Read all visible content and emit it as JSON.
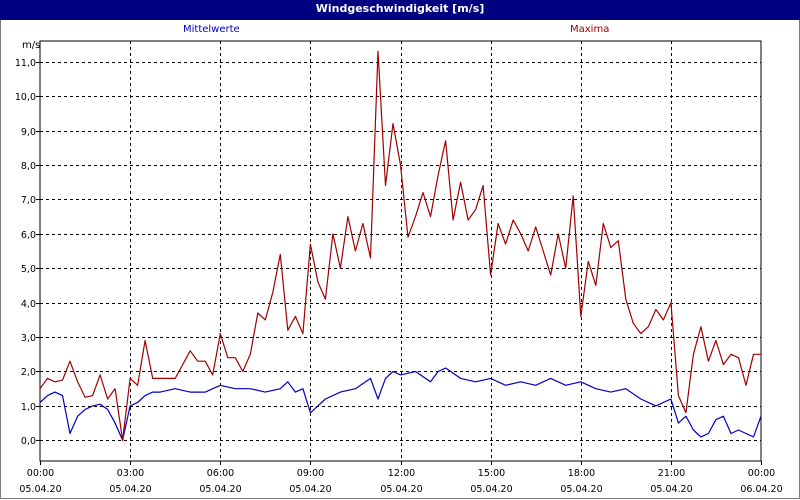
{
  "window": {
    "title": "Windgeschwindigkeit [m/s]"
  },
  "chart_data": {
    "type": "line",
    "title": "Windgeschwindigkeit [m/s]",
    "ylabel": "m/s",
    "xlabel": "",
    "ylim": [
      -0.6,
      11.6
    ],
    "yticks": [
      "0,0",
      "1,0",
      "2,0",
      "3,0",
      "4,0",
      "5,0",
      "6,0",
      "7,0",
      "8,0",
      "9,0",
      "10,0",
      "11,0"
    ],
    "xticks": [
      {
        "time": "00:00",
        "date": "05.04.20"
      },
      {
        "time": "03:00",
        "date": "05.04.20"
      },
      {
        "time": "06:00",
        "date": "05.04.20"
      },
      {
        "time": "09:00",
        "date": "05.04.20"
      },
      {
        "time": "12:00",
        "date": "05.04.20"
      },
      {
        "time": "15:00",
        "date": "05.04.20"
      },
      {
        "time": "18:00",
        "date": "05.04.20"
      },
      {
        "time": "21:00",
        "date": "05.04.20"
      },
      {
        "time": "00:00",
        "date": "06.04.20"
      }
    ],
    "x_unit_hours": true,
    "xlim": [
      0,
      24
    ],
    "grid": true,
    "series": [
      {
        "name": "Mittelwerte",
        "color": "#0000c0",
        "x": [
          0,
          0.25,
          0.5,
          0.75,
          1,
          1.25,
          1.5,
          1.75,
          2,
          2.25,
          2.5,
          2.75,
          3,
          3.25,
          3.5,
          3.75,
          4,
          4.5,
          5,
          5.5,
          6,
          6.5,
          7,
          7.5,
          8,
          8.25,
          8.5,
          8.75,
          9,
          9.5,
          10,
          10.5,
          11,
          11.25,
          11.5,
          11.75,
          12,
          12.5,
          13,
          13.25,
          13.5,
          14,
          14.5,
          15,
          15.5,
          16,
          16.5,
          17,
          17.5,
          18,
          18.5,
          19,
          19.5,
          20,
          20.5,
          21,
          21.25,
          21.5,
          21.75,
          22,
          22.25,
          22.5,
          22.75,
          23,
          23.25,
          23.5,
          23.75,
          24
        ],
        "y": [
          1.1,
          1.3,
          1.4,
          1.3,
          0.2,
          0.7,
          0.9,
          1.0,
          1.05,
          0.9,
          0.5,
          0.0,
          1.0,
          1.1,
          1.3,
          1.4,
          1.4,
          1.5,
          1.4,
          1.4,
          1.6,
          1.5,
          1.5,
          1.4,
          1.5,
          1.7,
          1.4,
          1.5,
          0.8,
          1.2,
          1.4,
          1.5,
          1.8,
          1.2,
          1.8,
          2.0,
          1.9,
          2.0,
          1.7,
          2.0,
          2.1,
          1.8,
          1.7,
          1.8,
          1.6,
          1.7,
          1.6,
          1.8,
          1.6,
          1.7,
          1.5,
          1.4,
          1.5,
          1.2,
          1.0,
          1.2,
          0.5,
          0.7,
          0.3,
          0.1,
          0.2,
          0.6,
          0.7,
          0.2,
          0.3,
          0.2,
          0.1,
          0.7
        ]
      },
      {
        "name": "Maxima",
        "color": "#a00000",
        "x": [
          0,
          0.25,
          0.5,
          0.75,
          1,
          1.25,
          1.5,
          1.75,
          2,
          2.25,
          2.5,
          2.75,
          3,
          3.25,
          3.5,
          3.75,
          4,
          4.5,
          5,
          5.25,
          5.5,
          5.75,
          6,
          6.25,
          6.5,
          6.75,
          7,
          7.25,
          7.5,
          7.75,
          8,
          8.25,
          8.5,
          8.75,
          9,
          9.25,
          9.5,
          9.75,
          10,
          10.25,
          10.5,
          10.75,
          11,
          11.25,
          11.5,
          11.75,
          12,
          12.25,
          12.5,
          12.75,
          13,
          13.25,
          13.5,
          13.75,
          14,
          14.25,
          14.5,
          14.75,
          15,
          15.25,
          15.5,
          15.75,
          16,
          16.25,
          16.5,
          16.75,
          17,
          17.25,
          17.5,
          17.75,
          18,
          18.25,
          18.5,
          18.75,
          19,
          19.25,
          19.5,
          19.75,
          20,
          20.25,
          20.5,
          20.75,
          21,
          21.25,
          21.5,
          21.75,
          22,
          22.25,
          22.5,
          22.75,
          23,
          23.25,
          23.5,
          23.75,
          24
        ],
        "y": [
          1.5,
          1.8,
          1.7,
          1.75,
          2.3,
          1.7,
          1.25,
          1.3,
          1.9,
          1.2,
          1.5,
          0.0,
          1.8,
          1.6,
          2.9,
          1.8,
          1.8,
          1.8,
          2.6,
          2.3,
          2.3,
          1.9,
          3.1,
          2.4,
          2.4,
          2.0,
          2.5,
          3.7,
          3.5,
          4.3,
          5.4,
          3.2,
          3.6,
          3.1,
          5.7,
          4.6,
          4.1,
          6.0,
          5.0,
          6.5,
          5.5,
          6.3,
          5.3,
          11.3,
          7.4,
          9.2,
          8.0,
          5.9,
          6.5,
          7.2,
          6.5,
          7.7,
          8.7,
          6.4,
          7.5,
          6.4,
          6.7,
          7.4,
          4.8,
          6.3,
          5.7,
          6.4,
          6.0,
          5.5,
          6.2,
          5.5,
          4.8,
          6.0,
          5.0,
          7.1,
          3.6,
          5.2,
          4.5,
          6.3,
          5.6,
          5.8,
          4.1,
          3.4,
          3.1,
          3.3,
          3.8,
          3.5,
          4.0,
          1.3,
          0.8,
          2.5,
          3.3,
          2.3,
          2.9,
          2.2,
          2.5,
          2.4,
          1.6,
          2.5,
          2.5
        ]
      }
    ]
  }
}
